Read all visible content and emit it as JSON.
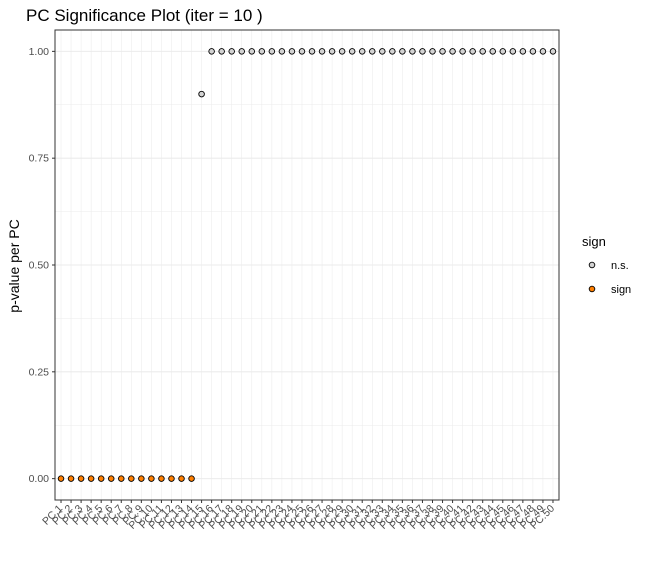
{
  "chart_data": {
    "type": "scatter",
    "title": "PC Significance Plot (iter = 10 )",
    "xlabel": "",
    "ylabel": "p-value per PC",
    "ylim": [
      -0.05,
      1.05
    ],
    "y_ticks": [
      0.0,
      0.25,
      0.5,
      0.75,
      1.0
    ],
    "y_tick_labels": [
      "0.00",
      "0.25",
      "0.50",
      "0.75",
      "1.00"
    ],
    "grid": true,
    "categories": [
      "PC.1",
      "PC.2",
      "PC.3",
      "PC.4",
      "PC.5",
      "PC.6",
      "PC.7",
      "PC.8",
      "PC.9",
      "PC.10",
      "PC.11",
      "PC.12",
      "PC.13",
      "PC.14",
      "PC.15",
      "PC.16",
      "PC.17",
      "PC.18",
      "PC.19",
      "PC.20",
      "PC.21",
      "PC.22",
      "PC.23",
      "PC.24",
      "PC.25",
      "PC.26",
      "PC.27",
      "PC.28",
      "PC.29",
      "PC.30",
      "PC.31",
      "PC.32",
      "PC.33",
      "PC.34",
      "PC.35",
      "PC.36",
      "PC.37",
      "PC.38",
      "PC.39",
      "PC.40",
      "PC.41",
      "PC.42",
      "PC.43",
      "PC.44",
      "PC.45",
      "PC.46",
      "PC.47",
      "PC.48",
      "PC.49",
      "PC.50"
    ],
    "values": [
      0,
      0,
      0,
      0,
      0,
      0,
      0,
      0,
      0,
      0,
      0,
      0,
      0,
      0,
      0.9,
      1,
      1,
      1,
      1,
      1,
      1,
      1,
      1,
      1,
      1,
      1,
      1,
      1,
      1,
      1,
      1,
      1,
      1,
      1,
      1,
      1,
      1,
      1,
      1,
      1,
      1,
      1,
      1,
      1,
      1,
      1,
      1,
      1,
      1,
      1
    ],
    "groups": [
      "sign",
      "sign",
      "sign",
      "sign",
      "sign",
      "sign",
      "sign",
      "sign",
      "sign",
      "sign",
      "sign",
      "sign",
      "sign",
      "sign",
      "n.s.",
      "n.s.",
      "n.s.",
      "n.s.",
      "n.s.",
      "n.s.",
      "n.s.",
      "n.s.",
      "n.s.",
      "n.s.",
      "n.s.",
      "n.s.",
      "n.s.",
      "n.s.",
      "n.s.",
      "n.s.",
      "n.s.",
      "n.s.",
      "n.s.",
      "n.s.",
      "n.s.",
      "n.s.",
      "n.s.",
      "n.s.",
      "n.s.",
      "n.s.",
      "n.s.",
      "n.s.",
      "n.s.",
      "n.s.",
      "n.s.",
      "n.s.",
      "n.s.",
      "n.s.",
      "n.s.",
      "n.s."
    ],
    "legend": {
      "title": "sign",
      "position": "right",
      "entries": [
        {
          "label": "n.s.",
          "color": "#d3d3d3"
        },
        {
          "label": "sign",
          "color": "#ff7f00"
        }
      ]
    },
    "colors": {
      "n.s.": "#d3d3d3",
      "sign": "#ff7f00",
      "point_outline": "#000000",
      "grid": "#ebebeb",
      "panel_border": "#333333"
    }
  }
}
